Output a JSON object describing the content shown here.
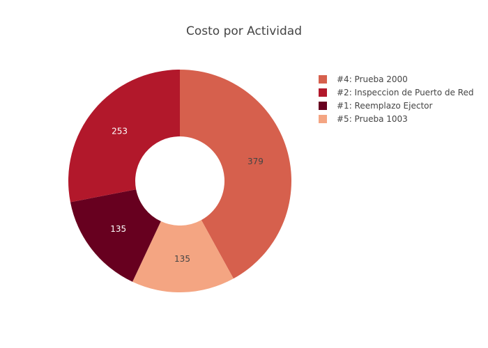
{
  "chart_data": {
    "type": "pie",
    "hole": true,
    "title": "Costo por Actividad",
    "legend_position": "top-right",
    "slices": [
      {
        "label": "#4: Prueba 2000",
        "value": 379,
        "value_label": "379",
        "color": "#d6604d",
        "text_color": "#444444"
      },
      {
        "label": "#5: Prueba 1003",
        "value": 135,
        "value_label": "135",
        "color": "#f4a582",
        "text_color": "#444444"
      },
      {
        "label": "#1: Reemplazo Ejector",
        "value": 135,
        "value_label": "135",
        "color": "#67001f",
        "text_color": "#ffffff"
      },
      {
        "label": "#2: Inspeccion de Puerto de Red",
        "value": 253,
        "value_label": "253",
        "color": "#b2182b",
        "text_color": "#ffffff"
      }
    ],
    "legend": [
      {
        "label": "#4: Prueba 2000",
        "color": "#d6604d"
      },
      {
        "label": "#2: Inspeccion de Puerto de Red",
        "color": "#b2182b"
      },
      {
        "label": "#1: Reemplazo Ejector",
        "color": "#67001f"
      },
      {
        "label": "#5: Prueba 1003",
        "color": "#f4a582"
      }
    ]
  }
}
